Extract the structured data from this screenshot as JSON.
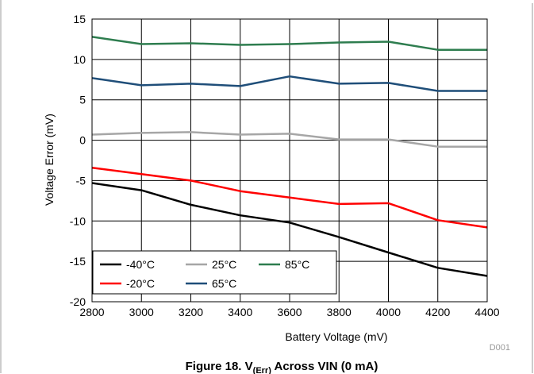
{
  "caption": {
    "prefix": "Figure 18. V",
    "subscript": "(Err)",
    "suffix": " Across VIN (0 mA)"
  },
  "code": "D001",
  "chart_data": {
    "type": "line",
    "xlabel": "Battery Voltage (mV)",
    "ylabel": "Voltage Error (mV)",
    "xlim": [
      2800,
      4400
    ],
    "ylim": [
      -20,
      15
    ],
    "xticks": [
      2800,
      3000,
      3200,
      3400,
      3600,
      3800,
      4000,
      4200,
      4400
    ],
    "yticks": [
      -20,
      -15,
      -10,
      -5,
      0,
      5,
      10,
      15
    ],
    "grid": true,
    "legend_position": "bottom-left",
    "x": [
      2800,
      3000,
      3200,
      3400,
      3600,
      3800,
      4000,
      4200,
      4400
    ],
    "series": [
      {
        "name": "-40°C",
        "color": "#000000",
        "values": [
          -5.3,
          -6.2,
          -8.0,
          -9.3,
          -10.2,
          -12.0,
          -13.9,
          -15.8,
          -16.8
        ]
      },
      {
        "name": "-20°C",
        "color": "#ff0000",
        "values": [
          -3.4,
          -4.2,
          -5.0,
          -6.3,
          -7.1,
          -7.9,
          -7.8,
          -9.9,
          -10.8
        ]
      },
      {
        "name": "25°C",
        "color": "#a6a6a6",
        "values": [
          0.7,
          0.9,
          1.0,
          0.7,
          0.8,
          0.1,
          0.1,
          -0.8,
          -0.8
        ]
      },
      {
        "name": "65°C",
        "color": "#1f4e79",
        "values": [
          7.7,
          6.8,
          7.0,
          6.7,
          7.9,
          7.0,
          7.1,
          6.1,
          6.1
        ]
      },
      {
        "name": "85°C",
        "color": "#2e7d4f",
        "values": [
          12.8,
          11.9,
          12.0,
          11.8,
          11.9,
          12.1,
          12.2,
          11.2,
          11.2
        ]
      }
    ]
  }
}
